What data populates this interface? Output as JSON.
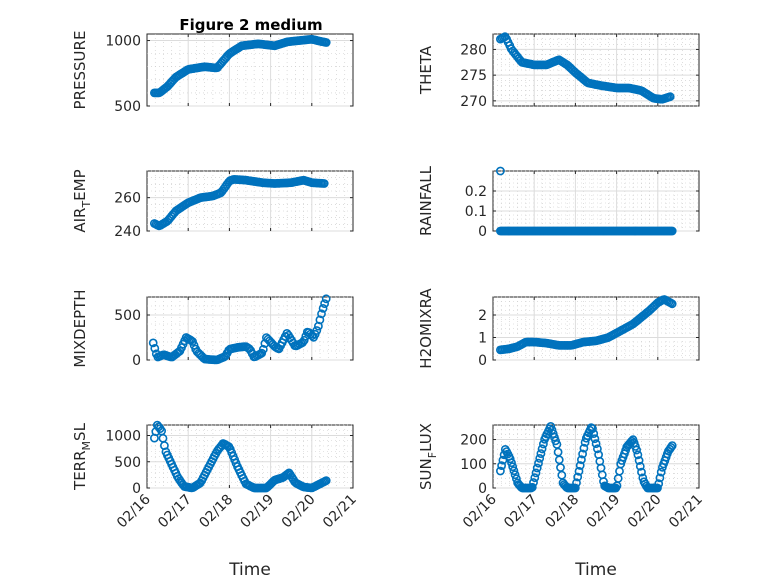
{
  "figure_title": "Figure 2 medium",
  "marker_color": "#0072bd",
  "chart_data": [
    {
      "type": "scatter",
      "ylabel": "PRESSURE",
      "ylim": [
        500,
        1050
      ],
      "yticks": [
        500,
        1000
      ],
      "ytick_labels": [
        "500",
        "1000"
      ],
      "xlim": [
        "02/16",
        "02/21"
      ],
      "xticks": [
        "02/16",
        "02/17",
        "02/18",
        "02/19",
        "02/20",
        "02/21"
      ],
      "show_xtick_labels": false,
      "xlabel": "",
      "grid": true,
      "curve": [
        [
          0.18,
          600
        ],
        [
          0.3,
          600
        ],
        [
          0.5,
          650
        ],
        [
          0.7,
          720
        ],
        [
          1.0,
          780
        ],
        [
          1.4,
          800
        ],
        [
          1.7,
          790
        ],
        [
          2.0,
          900
        ],
        [
          2.3,
          960
        ],
        [
          2.7,
          975
        ],
        [
          3.1,
          960
        ],
        [
          3.4,
          990
        ],
        [
          3.7,
          1000
        ],
        [
          4.0,
          1010
        ],
        [
          4.2,
          995
        ],
        [
          4.35,
          985
        ]
      ],
      "density": 120
    },
    {
      "type": "scatter",
      "ylabel": "THETA",
      "ylim": [
        269,
        283
      ],
      "yticks": [
        270,
        275,
        280
      ],
      "ytick_labels": [
        "270",
        "275",
        "280"
      ],
      "xlim": [
        "02/16",
        "02/21"
      ],
      "xticks": [
        "02/16",
        "02/17",
        "02/18",
        "02/19",
        "02/20",
        "02/21"
      ],
      "show_xtick_labels": false,
      "xlabel": "",
      "grid": true,
      "curve": [
        [
          0.18,
          282
        ],
        [
          0.3,
          282.5
        ],
        [
          0.45,
          280
        ],
        [
          0.7,
          277.5
        ],
        [
          1.0,
          277
        ],
        [
          1.3,
          277
        ],
        [
          1.6,
          278
        ],
        [
          1.8,
          277
        ],
        [
          2.0,
          275.5
        ],
        [
          2.3,
          273.5
        ],
        [
          2.6,
          273
        ],
        [
          3.0,
          272.5
        ],
        [
          3.3,
          272.5
        ],
        [
          3.6,
          272
        ],
        [
          3.9,
          270.5
        ],
        [
          4.1,
          270.3
        ],
        [
          4.3,
          270.8
        ]
      ],
      "density": 110
    },
    {
      "type": "scatter",
      "ylabel_parts": [
        "AIR",
        "T",
        "EMP"
      ],
      "ylim": [
        240,
        276
      ],
      "yticks": [
        240,
        260
      ],
      "ytick_labels": [
        "240",
        "260"
      ],
      "xlim": [
        "02/16",
        "02/21"
      ],
      "xticks": [
        "02/16",
        "02/17",
        "02/18",
        "02/19",
        "02/20",
        "02/21"
      ],
      "show_xtick_labels": false,
      "xlabel": "",
      "grid": true,
      "curve": [
        [
          0.18,
          244.5
        ],
        [
          0.3,
          243
        ],
        [
          0.5,
          246
        ],
        [
          0.7,
          252
        ],
        [
          1.0,
          257
        ],
        [
          1.3,
          260
        ],
        [
          1.6,
          261
        ],
        [
          1.8,
          263
        ],
        [
          2.0,
          270
        ],
        [
          2.1,
          271
        ],
        [
          2.4,
          270.5
        ],
        [
          2.8,
          269
        ],
        [
          3.1,
          268.5
        ],
        [
          3.5,
          269
        ],
        [
          3.8,
          270.5
        ],
        [
          4.0,
          269
        ],
        [
          4.3,
          268.5
        ]
      ],
      "density": 110
    },
    {
      "type": "scatter",
      "ylabel": "RAINFALL",
      "ylim": [
        0,
        0.3
      ],
      "yticks": [
        0,
        0.1,
        0.2
      ],
      "ytick_labels": [
        "0",
        "0.1",
        "0.2"
      ],
      "xlim": [
        "02/16",
        "02/21"
      ],
      "xticks": [
        "02/16",
        "02/17",
        "02/18",
        "02/19",
        "02/20",
        "02/21"
      ],
      "show_xtick_labels": false,
      "xlabel": "",
      "grid": true,
      "points": [
        [
          0.18,
          0.3
        ]
      ],
      "curve": [
        [
          0.18,
          0
        ],
        [
          4.35,
          0
        ]
      ],
      "density": 150
    },
    {
      "type": "scatter",
      "ylabel": "MIXDEPTH",
      "ylim": [
        0,
        700
      ],
      "yticks": [
        0,
        500
      ],
      "ytick_labels": [
        "0",
        "500"
      ],
      "xlim": [
        "02/16",
        "02/21"
      ],
      "xticks": [
        "02/16",
        "02/17",
        "02/18",
        "02/19",
        "02/20",
        "02/21"
      ],
      "show_xtick_labels": false,
      "xlabel": "",
      "grid": true,
      "curve": [
        [
          0.15,
          190
        ],
        [
          0.25,
          30
        ],
        [
          0.4,
          60
        ],
        [
          0.6,
          30
        ],
        [
          0.8,
          100
        ],
        [
          0.95,
          250
        ],
        [
          1.1,
          210
        ],
        [
          1.2,
          100
        ],
        [
          1.4,
          10
        ],
        [
          1.7,
          0
        ],
        [
          1.9,
          40
        ],
        [
          2.0,
          120
        ],
        [
          2.2,
          140
        ],
        [
          2.4,
          150
        ],
        [
          2.5,
          120
        ],
        [
          2.6,
          30
        ],
        [
          2.8,
          80
        ],
        [
          2.9,
          250
        ],
        [
          3.0,
          200
        ],
        [
          3.1,
          150
        ],
        [
          3.2,
          120
        ],
        [
          3.4,
          300
        ],
        [
          3.6,
          150
        ],
        [
          3.8,
          200
        ],
        [
          3.9,
          320
        ],
        [
          4.05,
          250
        ],
        [
          4.15,
          360
        ],
        [
          4.25,
          540
        ],
        [
          4.35,
          680
        ]
      ],
      "density": 110
    },
    {
      "type": "scatter",
      "ylabel": "H2OMIXRA",
      "ylim": [
        0,
        2.8
      ],
      "yticks": [
        0,
        1,
        2
      ],
      "ytick_labels": [
        "0",
        "1",
        "2"
      ],
      "xlim": [
        "02/16",
        "02/21"
      ],
      "xticks": [
        "02/16",
        "02/17",
        "02/18",
        "02/19",
        "02/20",
        "02/21"
      ],
      "show_xtick_labels": false,
      "xlabel": "",
      "grid": true,
      "curve": [
        [
          0.18,
          0.45
        ],
        [
          0.4,
          0.5
        ],
        [
          0.6,
          0.6
        ],
        [
          0.8,
          0.8
        ],
        [
          1.0,
          0.8
        ],
        [
          1.3,
          0.75
        ],
        [
          1.6,
          0.65
        ],
        [
          1.9,
          0.65
        ],
        [
          2.2,
          0.8
        ],
        [
          2.5,
          0.85
        ],
        [
          2.8,
          1.0
        ],
        [
          3.1,
          1.3
        ],
        [
          3.4,
          1.6
        ],
        [
          3.6,
          1.9
        ],
        [
          3.8,
          2.2
        ],
        [
          4.0,
          2.55
        ],
        [
          4.15,
          2.7
        ],
        [
          4.35,
          2.5
        ]
      ],
      "density": 110
    },
    {
      "type": "scatter",
      "ylabel_parts": [
        "TERR",
        "M",
        "SL"
      ],
      "ylim": [
        0,
        1200
      ],
      "yticks": [
        0,
        500,
        1000
      ],
      "ytick_labels": [
        "0",
        "500",
        "1000"
      ],
      "xlim": [
        "02/16",
        "02/21"
      ],
      "xticks": [
        "02/16",
        "02/17",
        "02/18",
        "02/19",
        "02/20",
        "02/21"
      ],
      "xtick_labels": [
        "02/16",
        "02/17",
        "02/18",
        "02/19",
        "02/20",
        "02/21"
      ],
      "show_xtick_labels": true,
      "xlabel": "Time",
      "grid": true,
      "curve": [
        [
          0.18,
          950
        ],
        [
          0.25,
          1200
        ],
        [
          0.35,
          1100
        ],
        [
          0.45,
          700
        ],
        [
          0.6,
          450
        ],
        [
          0.75,
          200
        ],
        [
          0.9,
          30
        ],
        [
          1.1,
          0
        ],
        [
          1.3,
          100
        ],
        [
          1.5,
          400
        ],
        [
          1.7,
          700
        ],
        [
          1.85,
          850
        ],
        [
          2.0,
          780
        ],
        [
          2.2,
          400
        ],
        [
          2.4,
          80
        ],
        [
          2.6,
          0
        ],
        [
          2.9,
          0
        ],
        [
          3.1,
          150
        ],
        [
          3.3,
          200
        ],
        [
          3.45,
          290
        ],
        [
          3.6,
          100
        ],
        [
          3.8,
          20
        ],
        [
          4.0,
          0
        ],
        [
          4.2,
          80
        ],
        [
          4.35,
          140
        ]
      ],
      "density": 120
    },
    {
      "type": "scatter",
      "ylabel_parts": [
        "SUN",
        "F",
        "LUX"
      ],
      "ylim": [
        0,
        260
      ],
      "yticks": [
        0,
        100,
        200
      ],
      "ytick_labels": [
        "0",
        "100",
        "200"
      ],
      "xlim": [
        "02/16",
        "02/21"
      ],
      "xticks": [
        "02/16",
        "02/17",
        "02/18",
        "02/19",
        "02/20",
        "02/21"
      ],
      "xtick_labels": [
        "02/16",
        "02/17",
        "02/18",
        "02/19",
        "02/20",
        "02/21"
      ],
      "show_xtick_labels": true,
      "xlabel": "Time",
      "grid": true,
      "curve": [
        [
          0.18,
          70
        ],
        [
          0.3,
          160
        ],
        [
          0.42,
          120
        ],
        [
          0.6,
          20
        ],
        [
          0.7,
          0
        ],
        [
          0.95,
          0
        ],
        [
          1.1,
          100
        ],
        [
          1.25,
          200
        ],
        [
          1.4,
          255
        ],
        [
          1.55,
          180
        ],
        [
          1.7,
          20
        ],
        [
          1.8,
          0
        ],
        [
          2.0,
          0
        ],
        [
          2.1,
          80
        ],
        [
          2.25,
          200
        ],
        [
          2.4,
          255
        ],
        [
          2.55,
          150
        ],
        [
          2.7,
          10
        ],
        [
          2.8,
          0
        ],
        [
          3.0,
          0
        ],
        [
          3.1,
          100
        ],
        [
          3.25,
          170
        ],
        [
          3.4,
          200
        ],
        [
          3.5,
          150
        ],
        [
          3.65,
          30
        ],
        [
          3.75,
          0
        ],
        [
          4.0,
          0
        ],
        [
          4.1,
          80
        ],
        [
          4.25,
          150
        ],
        [
          4.35,
          175
        ]
      ],
      "density": 140
    }
  ]
}
